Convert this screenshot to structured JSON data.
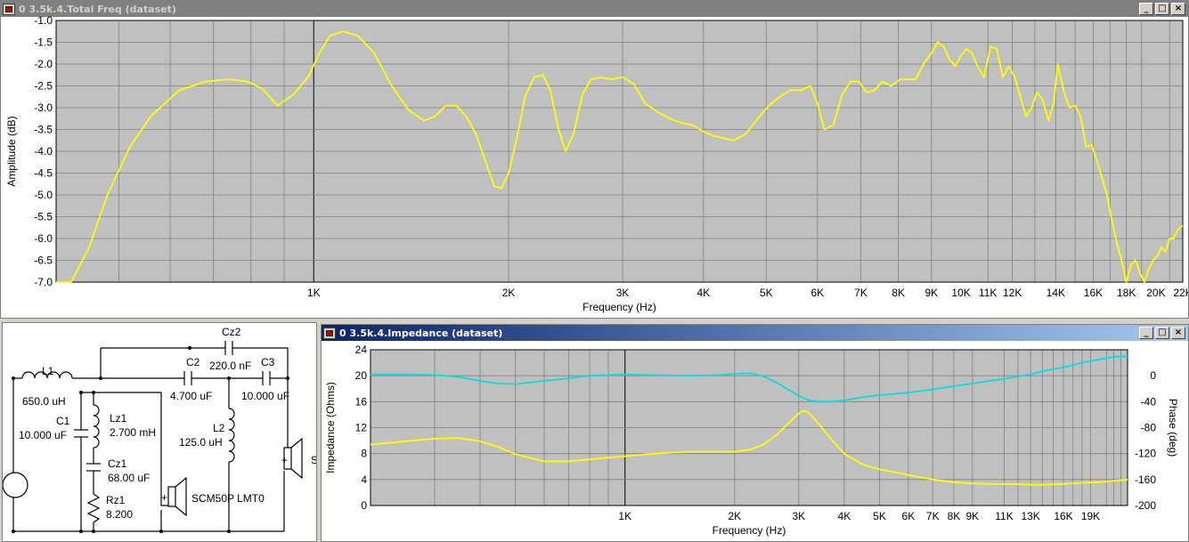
{
  "windows": {
    "freq": {
      "title": "0 3.5k.4.Total Freq (dataset)",
      "min_icon": "min-icon",
      "max_icon": "max-icon",
      "close_icon": "close-icon"
    },
    "impedance": {
      "title": "0 3.5k.4.Impedance (dataset)",
      "min_icon": "min-icon",
      "max_icon": "max-icon",
      "close_icon": "close-icon"
    }
  },
  "colors": {
    "plot_bg": "#c0c0c0",
    "grid": "#808080",
    "yellow_trace": "#ffff00",
    "cyan_trace": "#00e0e0",
    "active_title": "#0a246a",
    "inactive_title": "#808080"
  },
  "schematic": {
    "components": [
      {
        "id": "L1",
        "name": "L1",
        "value": "650.0 uH"
      },
      {
        "id": "C1",
        "name": "C1",
        "value": "10.000 uF"
      },
      {
        "id": "Lz1",
        "name": "Lz1",
        "value": "2.700 mH"
      },
      {
        "id": "Cz1",
        "name": "Cz1",
        "value": "68.00 uF"
      },
      {
        "id": "Rz1",
        "name": "Rz1",
        "value": "8.200"
      },
      {
        "id": "Cz2",
        "name": "Cz2",
        "value": "220.0 nF"
      },
      {
        "id": "C2",
        "name": "C2",
        "value": "4.700 uF"
      },
      {
        "id": "C3",
        "name": "C3",
        "value": "10.000 uF"
      },
      {
        "id": "L2",
        "name": "L2",
        "value": "125.0 uH"
      }
    ],
    "driver_label": "SCM50P LMT0",
    "plus_sign": "+",
    "cut_label": "S"
  },
  "chart_data": [
    {
      "type": "line",
      "title": "",
      "xlabel": "Frequency (Hz)",
      "ylabel": "Amplitude (dB)",
      "xscale": "log",
      "xlim": [
        400,
        22000
      ],
      "ylim": [
        -7.0,
        -1.0
      ],
      "grid": true,
      "legend": "none",
      "x_tick_labels": [
        {
          "value": 1000,
          "label": "1K"
        },
        {
          "value": 2000,
          "label": "2K"
        },
        {
          "value": 3000,
          "label": "3K"
        },
        {
          "value": 4000,
          "label": "4K"
        },
        {
          "value": 5000,
          "label": "5K"
        },
        {
          "value": 6000,
          "label": "6K"
        },
        {
          "value": 7000,
          "label": "7K"
        },
        {
          "value": 8000,
          "label": "8K"
        },
        {
          "value": 9000,
          "label": "9K"
        },
        {
          "value": 10000,
          "label": "10K"
        },
        {
          "value": 11000,
          "label": "11K"
        },
        {
          "value": 12000,
          "label": "12K"
        },
        {
          "value": 14000,
          "label": "14K"
        },
        {
          "value": 16000,
          "label": "16K"
        },
        {
          "value": 18000,
          "label": "18K"
        },
        {
          "value": 20000,
          "label": "20K"
        },
        {
          "value": 22000,
          "label": "22K"
        }
      ],
      "y_tick_labels": [
        {
          "value": -1.0,
          "label": "-1.0"
        },
        {
          "value": -1.5,
          "label": "-1.5"
        },
        {
          "value": -2.0,
          "label": "-2.0"
        },
        {
          "value": -2.5,
          "label": "-2.5"
        },
        {
          "value": -3.0,
          "label": "-3.0"
        },
        {
          "value": -3.5,
          "label": "-3.5"
        },
        {
          "value": -4.0,
          "label": "-4.0"
        },
        {
          "value": -4.5,
          "label": "-4.5"
        },
        {
          "value": -5.0,
          "label": "-5.0"
        },
        {
          "value": -5.5,
          "label": "-5.5"
        },
        {
          "value": -6.0,
          "label": "-6.0"
        },
        {
          "value": -6.5,
          "label": "-6.5"
        },
        {
          "value": -7.0,
          "label": "-7.0"
        }
      ],
      "series": [
        {
          "color": "#ffff00",
          "x": [
            400,
            422,
            450,
            480,
            520,
            560,
            620,
            680,
            740,
            790,
            830,
            880,
            930,
            980,
            1020,
            1060,
            1110,
            1170,
            1240,
            1320,
            1400,
            1480,
            1540,
            1600,
            1660,
            1720,
            1780,
            1850,
            1900,
            1950,
            2000,
            2060,
            2120,
            2190,
            2260,
            2320,
            2390,
            2450,
            2520,
            2600,
            2680,
            2780,
            2880,
            3000,
            3120,
            3250,
            3400,
            3550,
            3700,
            3850,
            4000,
            4150,
            4300,
            4450,
            4650,
            4850,
            5050,
            5250,
            5450,
            5650,
            5850,
            6000,
            6150,
            6350,
            6550,
            6750,
            6950,
            7150,
            7350,
            7550,
            7800,
            8050,
            8300,
            8500,
            8750,
            9000,
            9200,
            9400,
            9600,
            9800,
            10000,
            10200,
            10400,
            10600,
            10850,
            11100,
            11350,
            11600,
            11850,
            12100,
            12350,
            12600,
            12850,
            13100,
            13350,
            13650,
            13900,
            14100,
            14400,
            14700,
            15000,
            15300,
            15600,
            15900,
            16200,
            16500,
            16800,
            17100,
            17400,
            17700,
            18000,
            18300,
            18600,
            18900,
            19200,
            19500,
            19800,
            20100,
            20400,
            20700,
            21000,
            21300,
            21600,
            22000
          ],
          "values": [
            -7.0,
            -7.0,
            -6.2,
            -5.0,
            -3.9,
            -3.2,
            -2.6,
            -2.4,
            -2.35,
            -2.4,
            -2.55,
            -2.95,
            -2.7,
            -2.3,
            -1.75,
            -1.35,
            -1.25,
            -1.35,
            -1.75,
            -2.5,
            -3.05,
            -3.3,
            -3.2,
            -2.95,
            -2.95,
            -3.2,
            -3.6,
            -4.3,
            -4.8,
            -4.85,
            -4.5,
            -3.7,
            -2.75,
            -2.3,
            -2.25,
            -2.6,
            -3.5,
            -4.0,
            -3.6,
            -2.7,
            -2.35,
            -2.3,
            -2.35,
            -2.3,
            -2.45,
            -2.9,
            -3.1,
            -3.25,
            -3.35,
            -3.4,
            -3.55,
            -3.65,
            -3.7,
            -3.75,
            -3.6,
            -3.25,
            -2.95,
            -2.75,
            -2.6,
            -2.6,
            -2.5,
            -2.9,
            -3.5,
            -3.4,
            -2.7,
            -2.4,
            -2.4,
            -2.65,
            -2.6,
            -2.4,
            -2.5,
            -2.35,
            -2.35,
            -2.35,
            -2.0,
            -1.75,
            -1.5,
            -1.6,
            -1.9,
            -2.05,
            -1.8,
            -1.65,
            -1.75,
            -2.05,
            -2.3,
            -1.6,
            -1.65,
            -2.3,
            -2.05,
            -2.3,
            -2.75,
            -3.2,
            -3.0,
            -2.65,
            -2.8,
            -3.3,
            -2.9,
            -2.0,
            -2.6,
            -3.0,
            -2.95,
            -3.2,
            -3.9,
            -3.85,
            -4.2,
            -4.6,
            -5.0,
            -5.6,
            -6.1,
            -6.5,
            -7.0,
            -6.6,
            -6.5,
            -6.8,
            -7.0,
            -6.7,
            -6.5,
            -6.4,
            -6.2,
            -6.3,
            -6.0,
            -6.0,
            -5.8,
            -5.7
          ]
        }
      ]
    },
    {
      "type": "line",
      "title": "",
      "xlabel": "Frequency (Hz)",
      "ylabel": "Impedance (Ohms)",
      "ylabel2": "Phase (deg)",
      "xscale": "log",
      "xlim": [
        200,
        24000
      ],
      "ylim": [
        0,
        24
      ],
      "y2lim": [
        -200,
        40
      ],
      "grid": true,
      "legend": "none",
      "x_tick_labels": [
        {
          "value": 1000,
          "label": "1K"
        },
        {
          "value": 2000,
          "label": "2K"
        },
        {
          "value": 3000,
          "label": "3K"
        },
        {
          "value": 4000,
          "label": "4K"
        },
        {
          "value": 5000,
          "label": "5K"
        },
        {
          "value": 6000,
          "label": "6K"
        },
        {
          "value": 7000,
          "label": "7K"
        },
        {
          "value": 8000,
          "label": "8K"
        },
        {
          "value": 9000,
          "label": "9K"
        },
        {
          "value": 11000,
          "label": "11K"
        },
        {
          "value": 13000,
          "label": "13K"
        },
        {
          "value": 16000,
          "label": "16K"
        },
        {
          "value": 19000,
          "label": "19K"
        }
      ],
      "y_tick_labels": [
        {
          "value": 24,
          "label": "24"
        },
        {
          "value": 20,
          "label": "20"
        },
        {
          "value": 16,
          "label": "16"
        },
        {
          "value": 12,
          "label": "12"
        },
        {
          "value": 8,
          "label": "8"
        },
        {
          "value": 4,
          "label": "4"
        },
        {
          "value": 0,
          "label": "0"
        }
      ],
      "y2_tick_labels": [
        {
          "value": 0,
          "label": "0"
        },
        {
          "value": -40,
          "label": "-40"
        },
        {
          "value": -80,
          "label": "-80"
        },
        {
          "value": -120,
          "label": "-120"
        },
        {
          "value": -160,
          "label": "-160"
        },
        {
          "value": -200,
          "label": "-200"
        }
      ],
      "series": [
        {
          "axis": "left",
          "color": "#ffff00",
          "x": [
            200,
            250,
            300,
            350,
            400,
            450,
            500,
            600,
            700,
            800,
            1000,
            1200,
            1500,
            1800,
            2000,
            2200,
            2400,
            2600,
            2800,
            3000,
            3100,
            3200,
            3400,
            3700,
            4000,
            4500,
            5000,
            6000,
            7000,
            8000,
            9000,
            10000,
            11000,
            12000,
            13000,
            14000,
            16000,
            18000,
            20000,
            22000,
            24000
          ],
          "values": [
            9.4,
            9.9,
            10.3,
            10.4,
            9.9,
            9.0,
            7.9,
            6.8,
            6.8,
            7.1,
            7.6,
            8.0,
            8.3,
            8.3,
            8.3,
            8.6,
            9.4,
            10.8,
            12.6,
            14.2,
            14.6,
            14.3,
            12.6,
            10.1,
            8.0,
            6.3,
            5.6,
            4.7,
            4.0,
            3.6,
            3.4,
            3.3,
            3.3,
            3.3,
            3.2,
            3.2,
            3.3,
            3.5,
            3.6,
            3.8,
            4.0
          ]
        },
        {
          "axis": "right",
          "color": "#00e0e0",
          "x": [
            200,
            250,
            300,
            350,
            400,
            450,
            500,
            600,
            700,
            800,
            1000,
            1200,
            1500,
            1800,
            2000,
            2200,
            2400,
            2600,
            2800,
            3000,
            3200,
            3400,
            3700,
            4000,
            4500,
            5000,
            6000,
            7000,
            8000,
            9000,
            10000,
            11000,
            12000,
            13000,
            14000,
            16000,
            18000,
            20000,
            22000,
            24000
          ],
          "values": [
            2,
            2,
            1,
            -2,
            -8,
            -12,
            -13,
            -8,
            -4,
            0,
            2,
            1,
            0,
            1,
            3,
            4,
            -1,
            -10,
            -21,
            -31,
            -38,
            -40,
            -40,
            -38,
            -33,
            -30,
            -26,
            -21,
            -16,
            -12,
            -8,
            -5,
            -1,
            2,
            7,
            13,
            20,
            25,
            29,
            30
          ]
        }
      ]
    }
  ]
}
